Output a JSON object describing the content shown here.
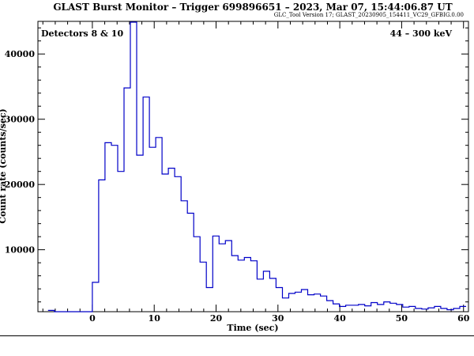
{
  "chart_data": {
    "type": "line",
    "title": "GLAST Burst Monitor  –  Trigger 699896651  –  2023, Mar 07, 15:44:06.87 UT",
    "subtitle": "GLC_Tool Version 17; GLAST_20230905_154411_VC29_GFBIG.0.00",
    "xlabel": "Time (sec)",
    "ylabel": "Count rate (counts/sec)",
    "xlim": [
      -8.8,
      60.8
    ],
    "ylim": [
      500,
      45000
    ],
    "xticks": [
      0,
      10,
      20,
      30,
      40,
      50,
      60
    ],
    "yticks": [
      10000,
      20000,
      30000,
      40000
    ],
    "grid": false,
    "annotations": {
      "detectors": "Detectors 8 & 10",
      "energy": "44 – 300 keV"
    },
    "series": [
      {
        "name": "",
        "color": "#0000c8",
        "style": "histogram",
        "bin_width": 1.024,
        "x": [
          -7.168,
          -6.144,
          -5.12,
          -4.096,
          -3.072,
          -2.048,
          -1.024,
          0,
          1.024,
          2.048,
          3.072,
          4.096,
          5.12,
          6.144,
          7.168,
          8.192,
          9.216,
          10.24,
          11.264,
          12.288,
          13.312,
          14.336,
          15.36,
          16.384,
          17.408,
          18.432,
          19.456,
          20.48,
          21.504,
          22.528,
          23.552,
          24.576,
          25.6,
          26.624,
          27.648,
          28.672,
          29.696,
          30.72,
          31.744,
          32.768,
          33.792,
          34.816,
          35.84,
          36.864,
          37.888,
          38.912,
          39.936,
          40.96,
          41.984,
          43.008,
          44.032,
          45.056,
          46.08,
          47.104,
          48.128,
          49.152,
          50.176,
          51.2,
          52.224,
          53.248,
          54.272,
          55.296,
          56.32,
          57.344,
          58.368,
          59.392
        ],
        "y": [
          700,
          500,
          500,
          500,
          500,
          500,
          500,
          5000,
          20700,
          26400,
          26000,
          22000,
          34800,
          44900,
          24500,
          33400,
          25700,
          27200,
          21600,
          22500,
          21200,
          17500,
          15600,
          12000,
          8100,
          4200,
          12100,
          10900,
          11400,
          9100,
          8400,
          8800,
          8300,
          5500,
          6700,
          5600,
          4200,
          2600,
          3300,
          3500,
          3900,
          3100,
          3200,
          2900,
          2200,
          1700,
          1300,
          1500,
          1500,
          1600,
          1400,
          1900,
          1600,
          2000,
          1800,
          1600,
          1200,
          1300,
          1000,
          900,
          1100,
          1300,
          1000,
          800,
          1000,
          1300
        ]
      }
    ]
  }
}
